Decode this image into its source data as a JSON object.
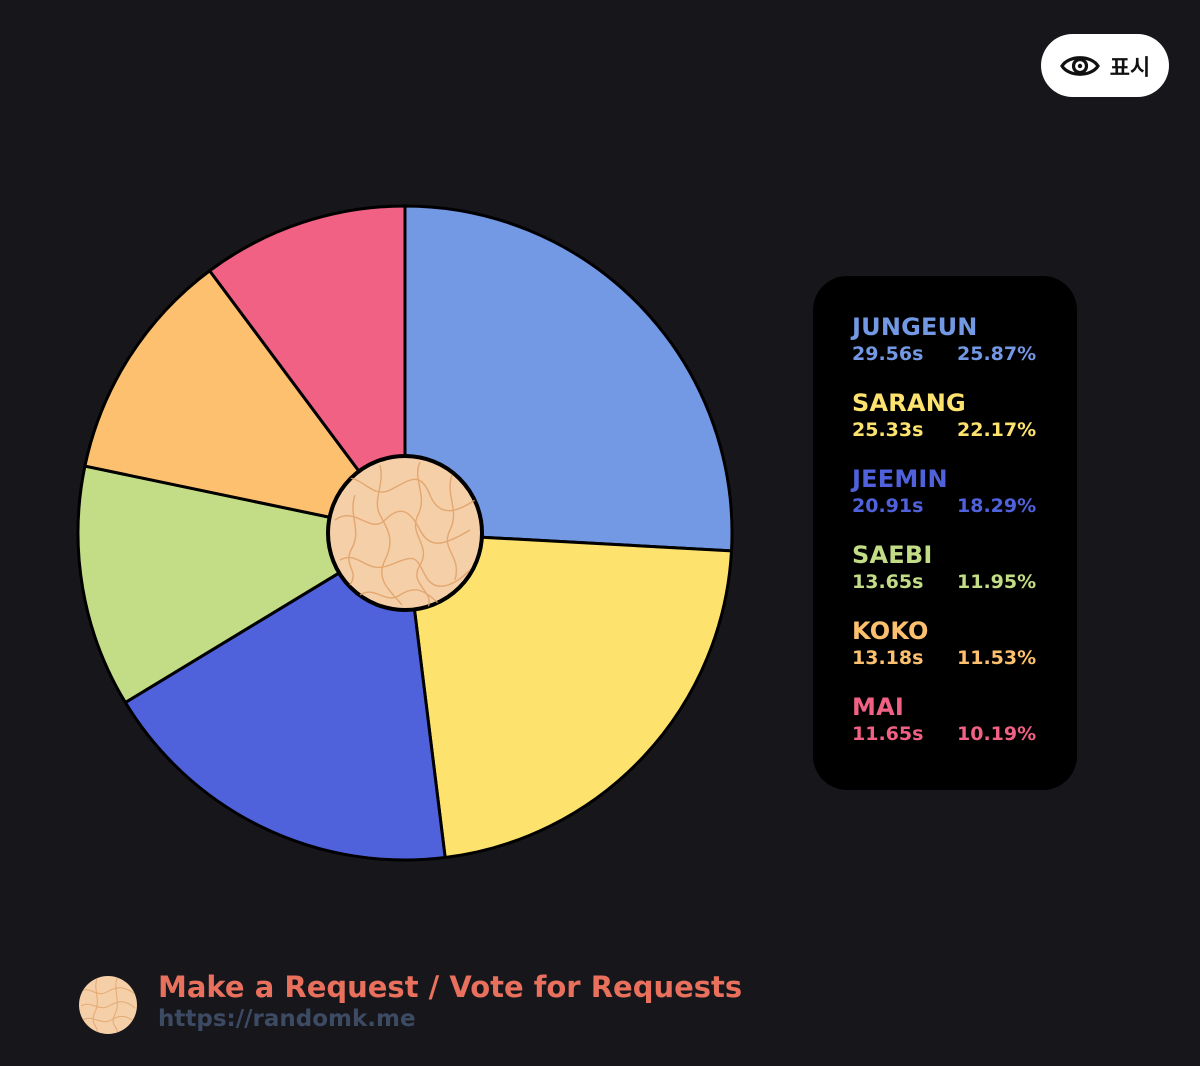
{
  "toggle": {
    "label": "표시",
    "icon": "eye-icon"
  },
  "chart_data": {
    "type": "pie",
    "title": "",
    "series": [
      {
        "name": "JUNGEUN",
        "time": "29.56s",
        "percent": "25.87%",
        "value": 25.87,
        "color": "#7398e4"
      },
      {
        "name": "SARANG",
        "time": "25.33s",
        "percent": "22.17%",
        "value": 22.17,
        "color": "#fde36d"
      },
      {
        "name": "JEEMIN",
        "time": "20.91s",
        "percent": "18.29%",
        "value": 18.29,
        "color": "#4f62dc"
      },
      {
        "name": "SAEBI",
        "time": "13.65s",
        "percent": "11.95%",
        "value": 11.95,
        "color": "#c3dc86"
      },
      {
        "name": "KOKO",
        "time": "13.18s",
        "percent": "11.53%",
        "value": 11.53,
        "color": "#fdc06e"
      },
      {
        "name": "MAI",
        "time": "11.65s",
        "percent": "10.19%",
        "value": 10.19,
        "color": "#f06183"
      }
    ],
    "legend": "right"
  },
  "footer": {
    "title": "Make a Request / Vote for Requests",
    "url": "https://randomk.me"
  }
}
